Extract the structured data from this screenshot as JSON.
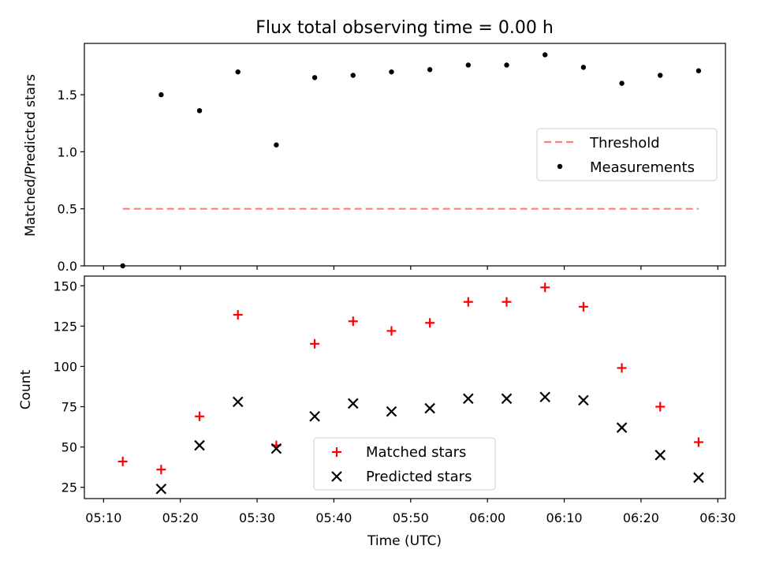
{
  "chart_data": {
    "type": "scatter",
    "title": "Flux total observing time = 0.00 h",
    "xlabel": "Time (UTC)",
    "x_ticks": [
      "05:10",
      "05:20",
      "05:30",
      "05:40",
      "05:50",
      "06:00",
      "06:10",
      "06:20",
      "06:30"
    ],
    "x_times": [
      "05:12:30",
      "05:17:30",
      "05:22:30",
      "05:27:30",
      "05:32:30",
      "05:37:30",
      "05:42:30",
      "05:47:30",
      "05:52:30",
      "05:57:30",
      "06:02:30",
      "06:07:30",
      "06:12:30",
      "06:17:30",
      "06:22:30",
      "06:27:30"
    ],
    "top": {
      "ylabel": "Matched/Predicted stars",
      "ylim": [
        0,
        1.95
      ],
      "y_ticks": [
        0.0,
        0.5,
        1.0,
        1.5
      ],
      "legend_position": "center-right",
      "series": [
        {
          "name": "Threshold",
          "kind": "dashed-line",
          "color": "#ff7f7f",
          "x_start": "05:12:30",
          "x_end": "06:27:30",
          "value": 0.5
        },
        {
          "name": "Measurements",
          "kind": "dot",
          "color": "#000000",
          "values": [
            0.0,
            1.5,
            1.36,
            1.7,
            1.06,
            1.65,
            1.67,
            1.7,
            1.72,
            1.76,
            1.76,
            1.85,
            1.74,
            1.6,
            1.67,
            1.71
          ]
        }
      ]
    },
    "bottom": {
      "ylabel": "Count",
      "ylim": [
        18,
        156
      ],
      "y_ticks": [
        25,
        50,
        75,
        100,
        125,
        150
      ],
      "legend_position": "lower-center",
      "series": [
        {
          "name": "Matched stars",
          "kind": "plus",
          "color": "#ff0000",
          "values": [
            41,
            36,
            69,
            132,
            51,
            114,
            128,
            122,
            127,
            140,
            140,
            149,
            137,
            99,
            75,
            53
          ]
        },
        {
          "name": "Predicted stars",
          "kind": "x",
          "color": "#000000",
          "values": [
            null,
            24,
            51,
            78,
            49,
            69,
            77,
            72,
            74,
            80,
            80,
            81,
            79,
            62,
            45,
            31
          ]
        }
      ]
    }
  }
}
